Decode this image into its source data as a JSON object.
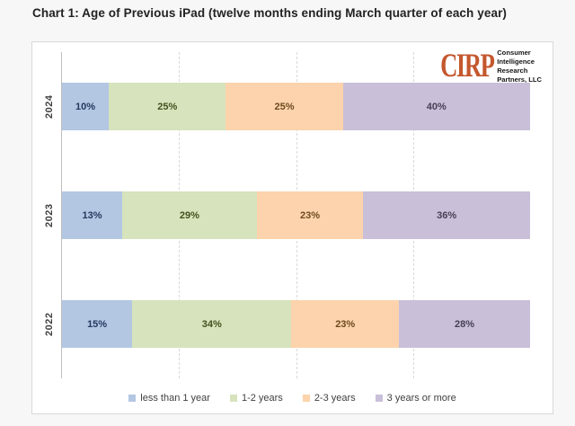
{
  "page": {
    "background": "#f7f7f7",
    "card_border": "#d9d9d9"
  },
  "logo": {
    "abbr": "CIRP",
    "abbr_color": "#c4572e",
    "lines": [
      "Consumer",
      "Intelligence",
      "Research",
      "Partners, LLC"
    ]
  },
  "chart_data": {
    "type": "bar",
    "orientation": "horizontal-stacked",
    "title": "Chart 1: Age of Previous iPad (twelve months ending March quarter of each year)",
    "categories": [
      "2024",
      "2023",
      "2022"
    ],
    "series": [
      {
        "name": "less than 1 year",
        "color": "#b3c7e3",
        "label_color": "#24385e",
        "values": [
          10,
          13,
          15
        ]
      },
      {
        "name": "1-2 years",
        "color": "#d6e3bc",
        "label_color": "#44511f",
        "values": [
          25,
          29,
          34
        ]
      },
      {
        "name": "2-3 years",
        "color": "#fcd3ac",
        "label_color": "#6e4a1f",
        "values": [
          25,
          23,
          23
        ]
      },
      {
        "name": "3 years or more",
        "color": "#c9bfd8",
        "label_color": "#474055",
        "values": [
          40,
          36,
          28
        ]
      }
    ],
    "value_suffix": "%",
    "xlim": [
      0,
      100
    ],
    "gridlines_percent": [
      25,
      50,
      75
    ],
    "grid_style": "dashed",
    "legend_position": "bottom",
    "axis_line_color": "#bfbfbf"
  }
}
